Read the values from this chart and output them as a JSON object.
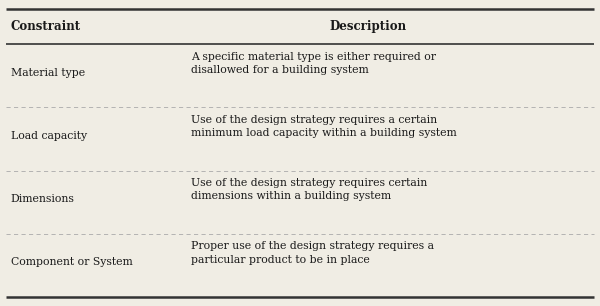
{
  "headers": [
    "Constraint",
    "Description"
  ],
  "rows": [
    [
      "Material type",
      "A specific material type is either required or\ndisallowed for a building system"
    ],
    [
      "Load capacity",
      "Use of the design strategy requires a certain\nminimum load capacity within a building system"
    ],
    [
      "Dimensions",
      "Use of the design strategy requires certain\ndimensions within a building system"
    ],
    [
      "Component or System",
      "Proper use of the design strategy requires a\nparticular product to be in place"
    ]
  ],
  "col_split": 0.3,
  "bg_color": "#f0ede4",
  "text_color": "#1a1a1a",
  "border_color": "#333333",
  "dashed_color": "#aaaaaa",
  "header_fontsize": 8.5,
  "cell_fontsize": 7.8,
  "figsize": [
    6.0,
    3.06
  ],
  "dpi": 100
}
